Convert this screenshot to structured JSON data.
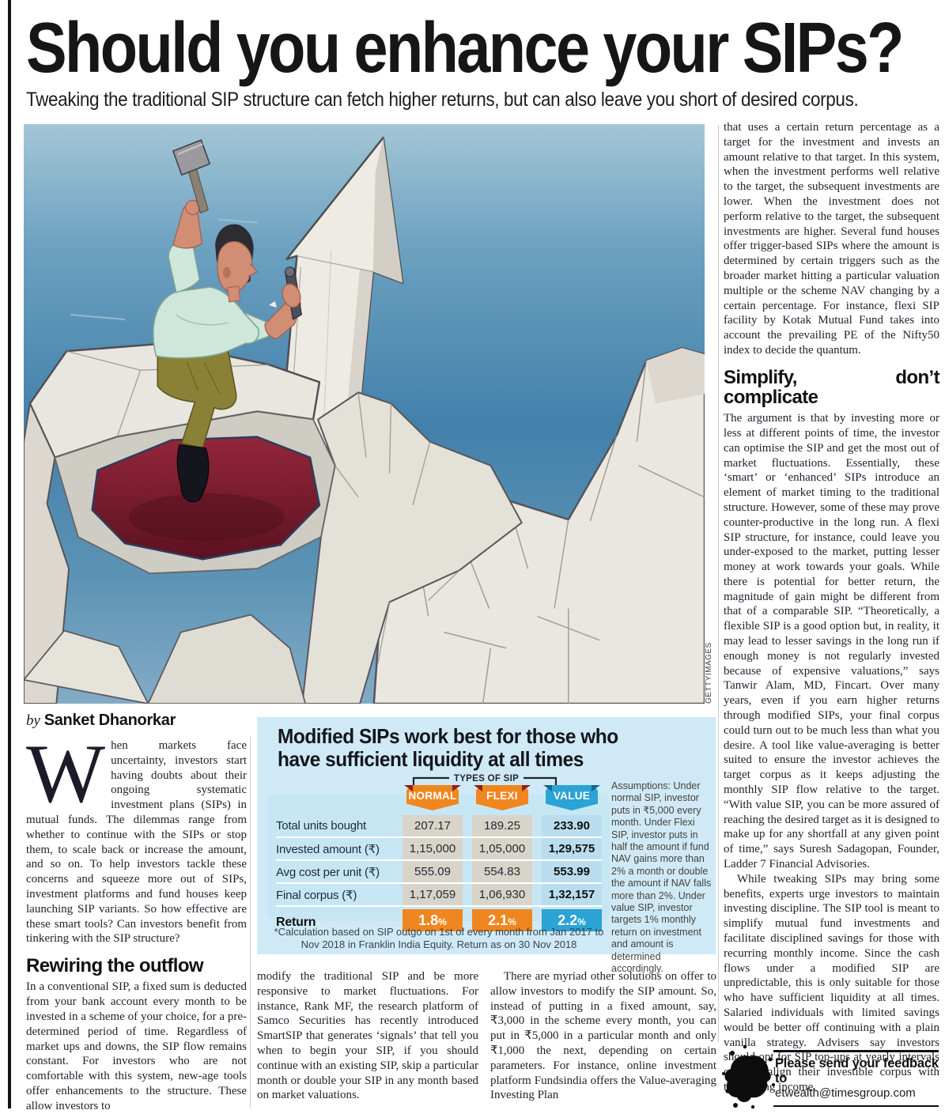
{
  "header": {
    "title": "Should you enhance your SIPs?",
    "subtitle": "Tweaking the traditional SIP structure can fetch higher returns, but can also leave you short of desired corpus."
  },
  "byline": {
    "prefix": "by",
    "author": "Sanket Dhanorkar"
  },
  "illustration": {
    "credit": "GETTYIMAGES"
  },
  "columns": {
    "left": {
      "dropcap": "W",
      "intro": "hen markets face uncertainty, investors start having doubts about their ongoing systematic investment plans (SIPs) in mutual funds. The dilemmas range from whether to continue with the SIPs or stop them, to scale back or increase the amount, and so on. To help investors tackle these concerns and squeeze more out of SIPs, investment platforms and fund houses keep launching SIP variants. So how effective are these smart tools? Can investors benefit from tinkering with the SIP structure?",
      "heading": "Rewiring the outflow",
      "para": "In a conventional SIP, a fixed sum is deducted from your bank account every month to be invested in a scheme of your choice, for a pre-determined period of time. Regardless of market ups and downs, the SIP flow remains constant. For investors who are not comfortable with this system, new-age tools offer enhancements to the structure. These allow investors to"
    },
    "middle": {
      "para": "modify the traditional SIP and be more responsive to market fluctuations. For instance, Rank MF, the research platform of Samco Securities has recently introduced SmartSIP that generates ‘signals’ that tell you when to begin your SIP, if you should continue with an existing SIP, skip a particular month or double your SIP in any month based on market valuations."
    },
    "middle_right": {
      "para": "There are myriad other solutions on offer to allow investors to modify the SIP amount. So, instead of putting in a fixed amount, say, ₹3,000 in the scheme every month, you can put in ₹5,000 in a particular month and only ₹1,000 the next, depending on certain parameters. For instance, online investment platform Fundsindia offers the Value-averaging Investing Plan"
    },
    "right": {
      "para1": "that uses a certain return percentage as a target for the investment and invests an amount relative to that target. In this system, when the investment performs well relative to the target, the subsequent investments are lower. When the investment does not perform relative to the target, the subsequent investments are higher. Several fund houses offer trigger-based SIPs where the amount is determined by certain triggers such as the broader market hitting a particular valuation multiple or the scheme NAV changing by a certain percentage. For instance, flexi SIP facility by Kotak Mutual Fund takes into account the prevailing PE of the Nifty50 index to decide the quantum.",
      "heading": "Simplify, don’t complicate",
      "para2": "The argument is that by investing more or less at different points of time, the investor can optimise the SIP and get the most out of market fluctuations. Essentially, these ‘smart’ or ‘enhanced’ SIPs introduce an element of market timing to the traditional structure. However, some of these may prove counter-productive in the long run. A flexi SIP structure, for instance, could leave you under-exposed to the market, putting lesser money at work towards your goals. While there is potential for better return, the magnitude of gain might be different from that of a comparable SIP. “Theoretically, a flexible SIP is a good option but, in reality, it may lead to lesser savings in the long run if enough money is not regularly invested because of expensive valuations,” says Tanwir Alam, MD, Fincart. Over many years, even if you earn higher returns through modified SIPs, your final corpus could turn out to be much less than what you desire. A tool like value-averaging is better suited to ensure the investor achieves the target corpus as it keeps adjusting the monthly SIP flow relative to the target. “With value SIP, you can be more assured of reaching the desired target as it is designed to make up for any shortfall at any given point of time,” says Suresh Sadagopan, Founder, Ladder 7 Financial Advisories.",
      "para3": "While tweaking SIPs may bring some benefits, experts urge investors to maintain investing discipline. The SIP tool is meant to simplify mutual fund investments and facilitate disciplined savings for those with recurring monthly income. Since the cash flows under a modified SIP are unpredictable, this is only suitable for those who have sufficient liquidity at all times. Salaried individuals with limited savings would be better off continuing with a plain vanilla strategy. Advisers say investors should opt for SIP top-ups at yearly intervals only to align their investible corpus with their rising income."
    }
  },
  "table": {
    "title_line1": "Modified SIPs work best for those who",
    "title_line2": "have sufficient liquidity at all times",
    "group_label": "TYPES OF SIP",
    "columns": [
      "NORMAL",
      "FLEXI",
      "VALUE"
    ],
    "rows": [
      {
        "label": "Total units bought",
        "values": [
          "207.17",
          "189.25",
          "233.90"
        ]
      },
      {
        "label": "Invested amount (₹)",
        "values": [
          "1,15,000",
          "1,05,000",
          "1,29,575"
        ]
      },
      {
        "label": "Avg cost per unit (₹)",
        "values": [
          "555.09",
          "554.83",
          "553.99"
        ]
      },
      {
        "label": "Final corpus (₹)",
        "values": [
          "1,17,059",
          "1,06,930",
          "1,32,157"
        ]
      },
      {
        "label": "Return",
        "values": [
          "1.8%",
          "2.1%",
          "2.2%"
        ]
      }
    ],
    "assumptions": "Assumptions: Under normal SIP, investor puts in ₹5,000 every month. Under Flexi SIP, investor puts in half the amount if fund NAV gains more than 2% a month or double the amount if NAV falls more than 2%. Under value SIP, investor targets 1% monthly return on investment and amount is determined accordingly.",
    "footnote": "*Calculation based on SIP outgo on 1st of every month from Jan 2017 to Nov 2018 in Franklin India Equity. Return as on 30 Nov 2018",
    "colors": {
      "normal": "#f0861f",
      "flexi": "#f0861f",
      "value": "#2ba3d4",
      "fold_orange": "#8a231a",
      "fold_blue": "#17658c",
      "panel": "#cfeaf6",
      "card": "#c6e6f3",
      "cell_beige": "#d9d4c9",
      "cell_blue": "#b9ddee"
    }
  },
  "footer": {
    "feedback_line1": "Please send your feedback to",
    "feedback_line2": "etwealth@timesgroup.com"
  }
}
